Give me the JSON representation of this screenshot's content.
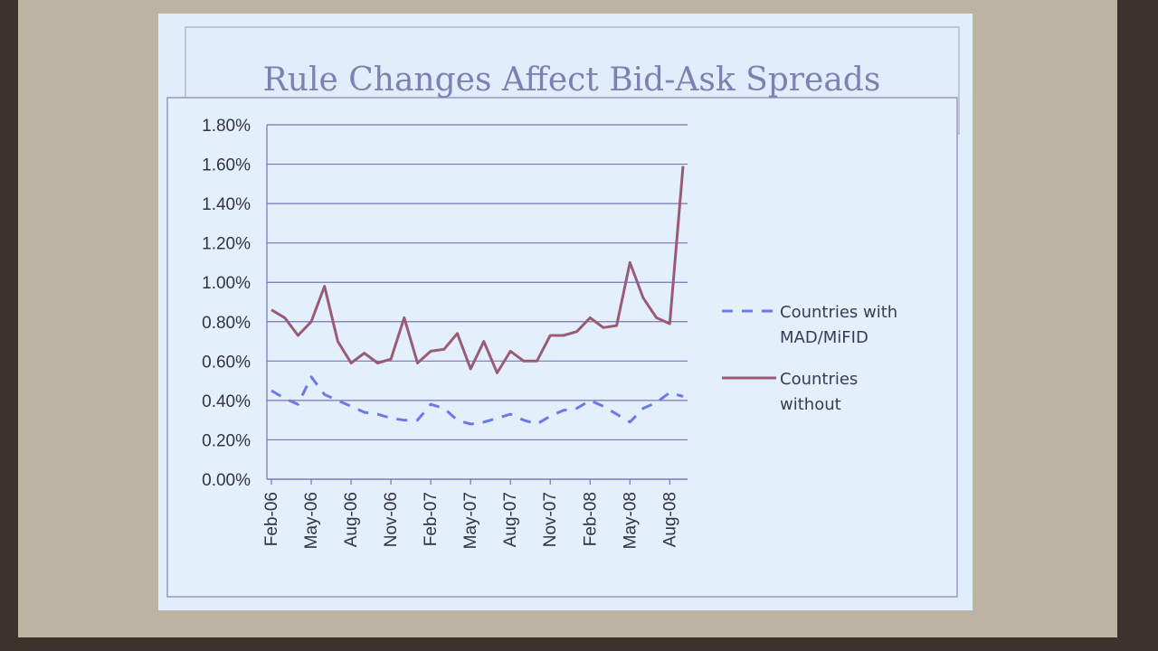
{
  "chart_data": {
    "type": "line",
    "title": "Rule Changes Affect Bid-Ask Spreads",
    "categories": [
      "Feb-06",
      null,
      null,
      "May-06",
      null,
      null,
      "Aug-06",
      null,
      null,
      "Nov-06",
      null,
      null,
      "Feb-07",
      null,
      null,
      "May-07",
      null,
      null,
      "Aug-07",
      null,
      null,
      "Nov-07",
      null,
      null,
      "Feb-08",
      null,
      null,
      "May-08",
      null,
      null,
      "Aug-08",
      null
    ],
    "series": [
      {
        "name": "Countries with MAD/MiFID",
        "color": "#6f78e8",
        "linestyle": "dashed",
        "values": [
          0.45,
          0.41,
          0.38,
          0.52,
          0.43,
          0.4,
          0.37,
          0.34,
          0.33,
          0.31,
          0.3,
          0.3,
          0.38,
          0.36,
          0.3,
          0.28,
          0.29,
          0.31,
          0.33,
          0.3,
          0.28,
          0.32,
          0.35,
          0.36,
          0.4,
          0.37,
          0.33,
          0.29,
          0.36,
          0.39,
          0.44,
          0.42
        ]
      },
      {
        "name": "Countries without MAD/MiFID",
        "color": "#9a5b76",
        "linestyle": "solid",
        "values": [
          0.86,
          0.82,
          0.73,
          0.8,
          0.98,
          0.7,
          0.59,
          0.64,
          0.59,
          0.61,
          0.82,
          0.59,
          0.65,
          0.66,
          0.74,
          0.56,
          0.7,
          0.54,
          0.65,
          0.6,
          0.6,
          0.73,
          0.73,
          0.75,
          0.82,
          0.77,
          0.78,
          1.1,
          0.92,
          0.82,
          0.79,
          1.59
        ]
      }
    ],
    "ylim": [
      0,
      1.8
    ],
    "yticks": [
      {
        "value": 0,
        "label": "0.00%"
      },
      {
        "value": 0.2,
        "label": "0.20%"
      },
      {
        "value": 0.4,
        "label": "0.40%"
      },
      {
        "value": 0.6,
        "label": "0.60%"
      },
      {
        "value": 0.8,
        "label": "0.80%"
      },
      {
        "value": 1.0,
        "label": "1.00%"
      },
      {
        "value": 1.2,
        "label": "1.20%"
      },
      {
        "value": 1.4,
        "label": "1.40%"
      },
      {
        "value": 1.6,
        "label": "1.60%"
      },
      {
        "value": 1.8,
        "label": "1.80%"
      }
    ],
    "grid": true,
    "legend": "right"
  }
}
